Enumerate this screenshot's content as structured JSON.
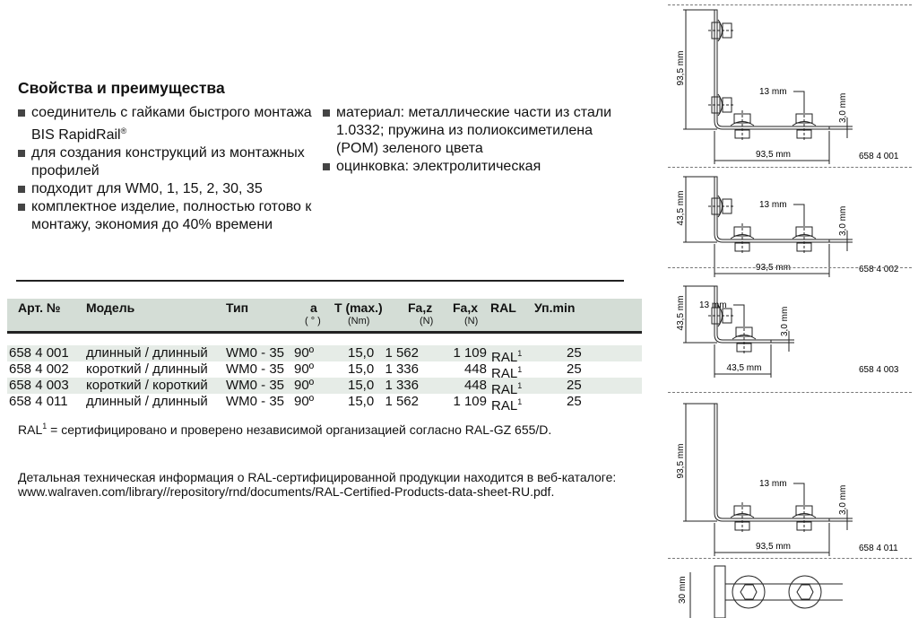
{
  "section_title": "Свойства и преимущества",
  "features_left": [
    "соединитель с гайками быстрого монтажа BIS RapidRail®",
    "для создания конструкций из монтажных профилей",
    "подходит для WM0, 1, 15, 2, 30, 35",
    "комплектное изделие, полностью готово к монтажу, экономия до 40% времени"
  ],
  "features_right": [
    "материал: металлические части из стали 1.0332; пружина из полиоксиметилена (POM) зеленого цвета",
    "оцинковка: электролитическая"
  ],
  "table": {
    "headers": [
      "Арт. №",
      "Модель",
      "Тип",
      "a",
      "T (max.)",
      "Fa,z",
      "Fa,x",
      "RAL",
      "Уп.min"
    ],
    "units": [
      "( ° )",
      "(Nm)",
      "(N)",
      "(N)"
    ],
    "rows": [
      [
        "658 4 001",
        "длинный / длинный",
        "WM0 - 35",
        "90º",
        "15,0",
        "1 562",
        "1 109",
        "RAL",
        "25"
      ],
      [
        "658 4 002",
        "короткий / длинный",
        "WM0 - 35",
        "90º",
        "15,0",
        "1 336",
        "448",
        "RAL",
        "25"
      ],
      [
        "658 4 003",
        "короткий / короткий",
        "WM0 - 35",
        "90º",
        "15,0",
        "1 336",
        "448",
        "RAL",
        "25"
      ],
      [
        "658 4 011",
        "длинный / длинный",
        "WM0 - 35",
        "90º",
        "15,0",
        "1 562",
        "1 109",
        "RAL",
        "25"
      ]
    ]
  },
  "footnote": "RAL¹ = сертифицировано и проверено независимой организацией согласно RAL-GZ 655/D.",
  "info": "Детальная техническая информация о RAL-сертифицированной продукции находится в веб-каталоге: www.walraven.com/library//repository/rnd/documents/RAL-Certified-Products-data-sheet-RU.pdf.",
  "drawings": [
    {
      "article": "658 4 001",
      "height": "93,5 mm",
      "width": "93,5 mm",
      "bolt": "13 mm",
      "thickness": "3,0 mm"
    },
    {
      "article": "658 4 002",
      "height": "43,5 mm",
      "width": "93,5 mm",
      "bolt": "13 mm",
      "thickness": "3,0 mm"
    },
    {
      "article": "658 4 003",
      "height": "43,5 mm",
      "width": "43,5 mm",
      "bolt": "13 mm",
      "thickness": "3,0 mm"
    },
    {
      "article": "658 4 011",
      "height": "93,5 mm",
      "width": "93,5 mm",
      "bolt": "13 mm",
      "thickness": "3,0 mm"
    },
    {
      "height": "30 mm"
    }
  ]
}
